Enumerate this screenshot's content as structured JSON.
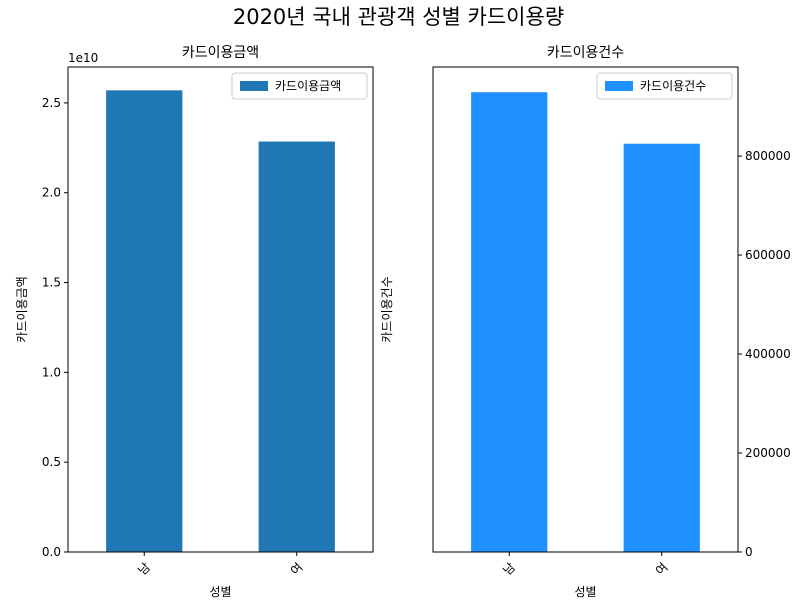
{
  "figure": {
    "title": "2020년 국내 관광객 성별 카드이용량"
  },
  "chart_data": [
    {
      "type": "bar",
      "title": "카드이용금액",
      "xlabel": "성별",
      "ylabel": "카드이용금액",
      "categories": [
        "남",
        "여"
      ],
      "series": [
        {
          "name": "카드이용금액",
          "values": [
            25700000000,
            22850000000
          ]
        }
      ],
      "ylim": [
        0,
        27000000000
      ],
      "yticks": [
        0,
        5000000000,
        10000000000,
        15000000000,
        20000000000,
        25000000000
      ],
      "ytick_labels": [
        "0.0",
        "0.5",
        "1.0",
        "1.5",
        "2.0",
        "2.5"
      ],
      "offset_text": "1e10",
      "yaxis_side": "left",
      "color": "#1f77b4",
      "legend": "top-right",
      "grid": false
    },
    {
      "type": "bar",
      "title": "카드이용건수",
      "xlabel": "성별",
      "ylabel": "카드이용건수",
      "categories": [
        "남",
        "여"
      ],
      "series": [
        {
          "name": "카드이용건수",
          "values": [
            929000,
            825000
          ]
        }
      ],
      "ylim": [
        0,
        980000
      ],
      "yticks": [
        0,
        200000,
        400000,
        600000,
        800000
      ],
      "ytick_labels": [
        "0",
        "200000",
        "400000",
        "600000",
        "800000"
      ],
      "yaxis_side": "right",
      "color": "#1e90ff",
      "legend": "top-right",
      "grid": false
    }
  ]
}
